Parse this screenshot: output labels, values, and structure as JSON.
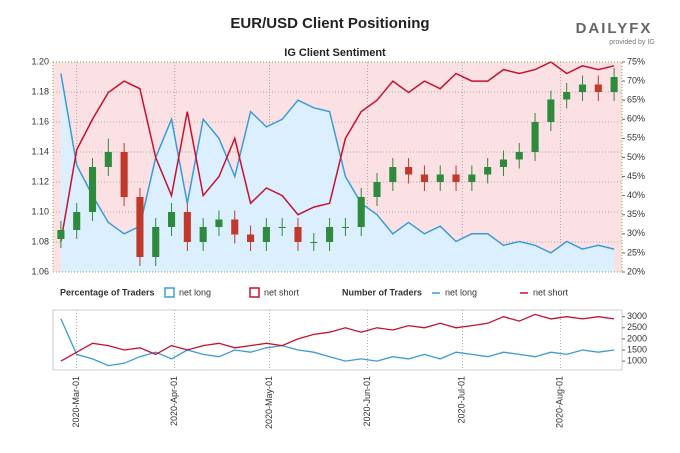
{
  "header": {
    "title": "EUR/USD Client Positioning",
    "brand": "DAILYFX",
    "tagline": "provided by IG"
  },
  "chart_data": [
    {
      "type": "candlestick",
      "title": "IG Client Sentiment",
      "open": [
        1.082,
        1.088,
        1.1,
        1.13,
        1.14,
        1.11,
        1.07,
        1.09,
        1.1,
        1.08,
        1.09,
        1.095,
        1.085,
        1.08,
        1.09,
        1.09,
        1.08,
        1.08,
        1.09,
        1.09,
        1.11,
        1.12,
        1.13,
        1.125,
        1.12,
        1.125,
        1.12,
        1.125,
        1.13,
        1.135,
        1.14,
        1.16,
        1.175,
        1.18,
        1.185,
        1.18
      ],
      "high": [
        1.094,
        1.106,
        1.136,
        1.149,
        1.146,
        1.116,
        1.096,
        1.106,
        1.106,
        1.096,
        1.101,
        1.101,
        1.091,
        1.096,
        1.096,
        1.096,
        1.086,
        1.096,
        1.096,
        1.116,
        1.126,
        1.136,
        1.136,
        1.131,
        1.131,
        1.131,
        1.131,
        1.136,
        1.141,
        1.146,
        1.166,
        1.181,
        1.186,
        1.191,
        1.191,
        1.196
      ],
      "low": [
        1.076,
        1.082,
        1.094,
        1.124,
        1.104,
        1.064,
        1.064,
        1.084,
        1.074,
        1.074,
        1.084,
        1.079,
        1.074,
        1.074,
        1.084,
        1.074,
        1.074,
        1.074,
        1.084,
        1.084,
        1.104,
        1.114,
        1.119,
        1.114,
        1.114,
        1.114,
        1.114,
        1.119,
        1.124,
        1.129,
        1.134,
        1.154,
        1.169,
        1.174,
        1.174,
        1.174
      ],
      "close": [
        1.088,
        1.1,
        1.13,
        1.14,
        1.11,
        1.07,
        1.09,
        1.1,
        1.08,
        1.09,
        1.095,
        1.085,
        1.08,
        1.09,
        1.09,
        1.08,
        1.08,
        1.09,
        1.09,
        1.11,
        1.12,
        1.13,
        1.125,
        1.12,
        1.125,
        1.12,
        1.125,
        1.13,
        1.135,
        1.14,
        1.16,
        1.175,
        1.18,
        1.185,
        1.18,
        1.19
      ],
      "up_color": "#2e8b3e",
      "down_color": "#c0392b",
      "ylim": [
        1.06,
        1.2
      ],
      "yticks": [
        {
          "value": 1.06,
          "label": "1.06"
        },
        {
          "value": 1.08,
          "label": "1.08"
        },
        {
          "value": 1.1,
          "label": "1.10"
        },
        {
          "value": 1.12,
          "label": "1.12"
        },
        {
          "value": 1.14,
          "label": "1.14"
        },
        {
          "value": 1.16,
          "label": "1.16"
        },
        {
          "value": 1.18,
          "label": "1.18"
        },
        {
          "value": 1.2,
          "label": "1.20"
        }
      ],
      "y2lim": [
        20,
        75
      ],
      "y2ticks": [
        {
          "value": 20,
          "label": "20%"
        },
        {
          "value": 25,
          "label": "25%"
        },
        {
          "value": 30,
          "label": "30%"
        },
        {
          "value": 35,
          "label": "35%"
        },
        {
          "value": 40,
          "label": "40%"
        },
        {
          "value": 45,
          "label": "45%"
        },
        {
          "value": 50,
          "label": "50%"
        },
        {
          "value": 55,
          "label": "55%"
        },
        {
          "value": 60,
          "label": "60%"
        },
        {
          "value": 65,
          "label": "65%"
        },
        {
          "value": 70,
          "label": "70%"
        },
        {
          "value": 75,
          "label": "75%"
        }
      ],
      "legend_title": "Percentage of Traders",
      "series": [
        {
          "name": "net long",
          "color": "#3b9bd8",
          "axis": "y2",
          "values": [
            72,
            48,
            40,
            33,
            30,
            32,
            50,
            60,
            38,
            60,
            55,
            45,
            62,
            58,
            60,
            65,
            63,
            62,
            45,
            38,
            35,
            30,
            33,
            30,
            32,
            28,
            30,
            30,
            27,
            28,
            27,
            25,
            28,
            26,
            27,
            26
          ]
        },
        {
          "name": "net short",
          "color": "#c8102e",
          "axis": "y2",
          "values": [
            28,
            52,
            60,
            67,
            70,
            68,
            50,
            40,
            62,
            40,
            45,
            55,
            38,
            42,
            40,
            35,
            37,
            38,
            55,
            62,
            65,
            70,
            67,
            70,
            68,
            72,
            70,
            70,
            73,
            72,
            73,
            75,
            72,
            74,
            73,
            74
          ]
        }
      ],
      "xlim": [
        -0.5,
        35.5
      ]
    },
    {
      "type": "line",
      "legend_title": "Number of Traders",
      "series": [
        {
          "name": "net long",
          "color": "#3b9bd8",
          "axis": "y2",
          "values": [
            2900,
            1300,
            1100,
            800,
            900,
            1200,
            1400,
            1100,
            1500,
            1300,
            1200,
            1500,
            1400,
            1600,
            1700,
            1500,
            1400,
            1200,
            1000,
            1100,
            1000,
            1200,
            1100,
            1300,
            1100,
            1400,
            1300,
            1200,
            1400,
            1300,
            1200,
            1400,
            1300,
            1500,
            1400,
            1500
          ]
        },
        {
          "name": "net short",
          "color": "#c8102e",
          "axis": "y2",
          "values": [
            1000,
            1400,
            1800,
            1700,
            1500,
            1600,
            1300,
            1700,
            1500,
            1700,
            1800,
            1600,
            1700,
            1800,
            1700,
            2000,
            2200,
            2300,
            2500,
            2300,
            2500,
            2400,
            2600,
            2500,
            2700,
            2500,
            2600,
            2700,
            3000,
            2800,
            3100,
            2900,
            3000,
            2900,
            3000,
            2900
          ]
        }
      ],
      "y2lim": [
        600,
        3300
      ],
      "y2ticks": [
        1000,
        1500,
        2000,
        2500,
        3000
      ],
      "xlim": [
        -0.5,
        35.5
      ],
      "xticks": [
        {
          "value": 1,
          "label": "2020-Mar-01"
        },
        {
          "value": 7.2,
          "label": "2020-Apr-01"
        },
        {
          "value": 13.2,
          "label": "2020-May-01"
        },
        {
          "value": 19.4,
          "label": "2020-Jun-01"
        },
        {
          "value": 25.4,
          "label": "2020-Jul-01"
        },
        {
          "value": 31.6,
          "label": "2020-Aug-01"
        }
      ]
    }
  ]
}
